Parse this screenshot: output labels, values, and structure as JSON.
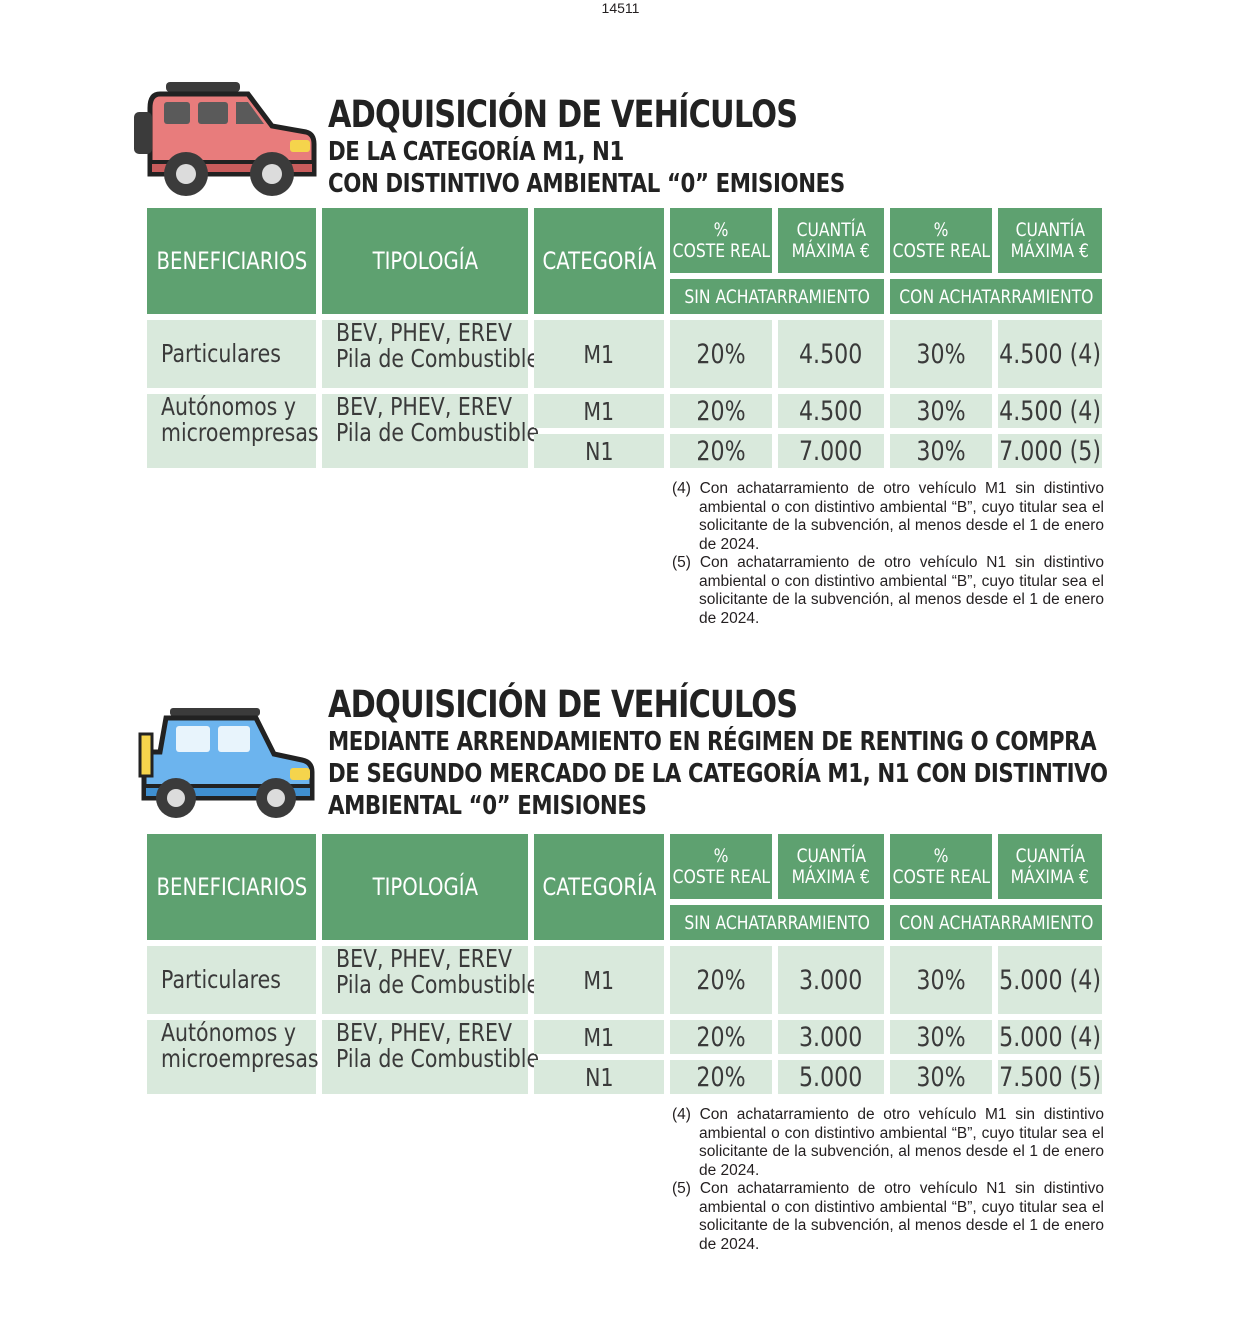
{
  "page_number": "14511",
  "header_labels": {
    "beneficiarios": "BENEFICIARIOS",
    "tipologia": "TIPOLOGÍA",
    "categoria": "CATEGORÍA",
    "pct_line1": "%",
    "pct_line2": "COSTE REAL",
    "max_line1": "CUANTÍA",
    "max_line2": "MÁXIMA €",
    "sin": "SIN ACHATARRAMIENTO",
    "con": "CON ACHATARRAMIENTO"
  },
  "sections": [
    {
      "title": "ADQUISICIÓN DE VEHÍCULOS",
      "subtitle_lines": [
        "DE LA CATEGORÍA M1, N1",
        "CON DISTINTIVO AMBIENTAL “0” EMISIONES"
      ],
      "icon": "red-suv-icon",
      "rows": {
        "particulares": {
          "beneficiario": "Particulares",
          "tipologia": [
            "BEV, PHEV, EREV",
            "Pila de Combustible"
          ],
          "categoria": "M1",
          "pct_sin": "20%",
          "max_sin": "4.500",
          "pct_con": "30%",
          "max_con": "4.500 (4)"
        },
        "autonomos": {
          "beneficiario": [
            "Autónomos y",
            "microempresas"
          ],
          "tipologia": [
            "BEV, PHEV, EREV",
            "Pila de Combustible"
          ],
          "m1": {
            "categoria": "M1",
            "pct_sin": "20%",
            "max_sin": "4.500",
            "pct_con": "30%",
            "max_con": "4.500 (4)"
          },
          "n1": {
            "categoria": "N1",
            "pct_sin": "20%",
            "max_sin": "7.000",
            "pct_con": "30%",
            "max_con": "7.000 (5)"
          }
        }
      },
      "notes": [
        "(4) Con achatarramiento de otro vehículo M1 sin distintivo ambiental o con distintivo ambiental “B”, cuyo titular sea el solicitante de la subvención, al menos desde el 1 de enero de 2024.",
        "(5) Con achatarramiento de otro vehículo N1 sin distintivo ambiental o con distintivo ambiental “B”, cuyo titular sea el solicitante de la subvención, al menos desde el 1 de enero de 2024."
      ]
    },
    {
      "title": "ADQUISICIÓN DE VEHÍCULOS",
      "subtitle_lines": [
        "MEDIANTE ARRENDAMIENTO EN RÉGIMEN DE RENTING O COMPRA",
        "DE SEGUNDO MERCADO DE LA CATEGORÍA M1, N1 CON DISTINTIVO",
        "AMBIENTAL “0” EMISIONES"
      ],
      "icon": "blue-suv-icon",
      "rows": {
        "particulares": {
          "beneficiario": "Particulares",
          "tipologia": [
            "BEV, PHEV, EREV",
            "Pila de Combustible"
          ],
          "categoria": "M1",
          "pct_sin": "20%",
          "max_sin": "3.000",
          "pct_con": "30%",
          "max_con": "5.000 (4)"
        },
        "autonomos": {
          "beneficiario": [
            "Autónomos y",
            "microempresas"
          ],
          "tipologia": [
            "BEV, PHEV, EREV",
            "Pila de Combustible"
          ],
          "m1": {
            "categoria": "M1",
            "pct_sin": "20%",
            "max_sin": "3.000",
            "pct_con": "30%",
            "max_con": "5.000 (4)"
          },
          "n1": {
            "categoria": "N1",
            "pct_sin": "20%",
            "max_sin": "5.000",
            "pct_con": "30%",
            "max_con": "7.500 (5)"
          }
        }
      },
      "notes": [
        "(4) Con achatarramiento de otro vehículo M1 sin distintivo ambiental o con distintivo ambiental “B”, cuyo titular sea el solicitante de la subvención, al menos desde el 1 de enero de 2024.",
        "(5) Con achatarramiento de otro vehículo N1 sin distintivo ambiental o con distintivo ambiental “B”, cuyo titular sea el solicitante de la subvención, al menos desde el 1 de enero de 2024."
      ]
    }
  ]
}
